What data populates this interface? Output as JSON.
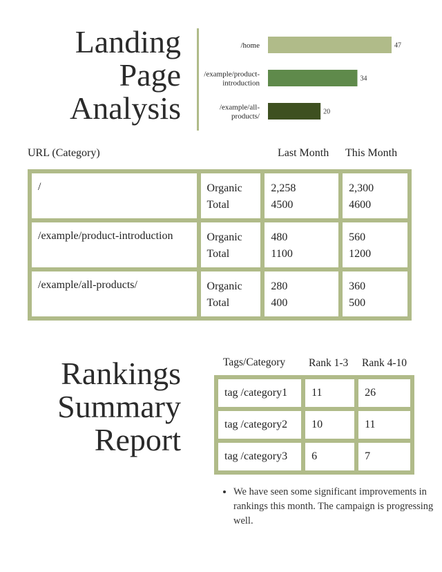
{
  "landing": {
    "title_lines": [
      "Landing",
      "Page",
      "Analysis"
    ],
    "headers": {
      "url": "URL (Category)",
      "last": "Last Month",
      "this": "This Month"
    },
    "rows": [
      {
        "url": "/",
        "labels": [
          "Organic",
          "Total"
        ],
        "last": [
          "2,258",
          "4500"
        ],
        "this": [
          "2,300",
          "4600"
        ]
      },
      {
        "url": "/example/product-introduction",
        "labels": [
          "Organic",
          "Total"
        ],
        "last": [
          "480",
          "1100"
        ],
        "this": [
          "560",
          "1200"
        ]
      },
      {
        "url": "/example/all-products/",
        "labels": [
          "Organic",
          "Total"
        ],
        "last": [
          "280",
          "400"
        ],
        "this": [
          "360",
          "500"
        ]
      }
    ]
  },
  "chart_data": {
    "type": "bar",
    "orientation": "horizontal",
    "categories": [
      "/home",
      "/example/product-introduction",
      "/example/all-products/"
    ],
    "category_lines": [
      [
        "/home"
      ],
      [
        "/example/product-",
        "introduction"
      ],
      [
        "/example/all-",
        "products/"
      ]
    ],
    "values": [
      47,
      34,
      20
    ],
    "colors": [
      "#b0bb89",
      "#5f8a4b",
      "#3e5020"
    ],
    "xlim": [
      0,
      47
    ],
    "grid": false,
    "title": "",
    "xlabel": "",
    "ylabel": ""
  },
  "rankings": {
    "title_lines": [
      "Rankings",
      "Summary",
      "Report"
    ],
    "headers": {
      "tag": "Tags/Category",
      "rank13": "Rank 1-3",
      "rank410": "Rank 4-10"
    },
    "rows": [
      {
        "tag": "tag /category1",
        "rank13": "11",
        "rank410": "26"
      },
      {
        "tag": "tag /category2",
        "rank13": "10",
        "rank410": "11"
      },
      {
        "tag": "tag /category3",
        "rank13": "6",
        "rank410": "7"
      }
    ],
    "notes": [
      "We have seen some significant improvements in rankings this month. The campaign is progressing well."
    ]
  }
}
